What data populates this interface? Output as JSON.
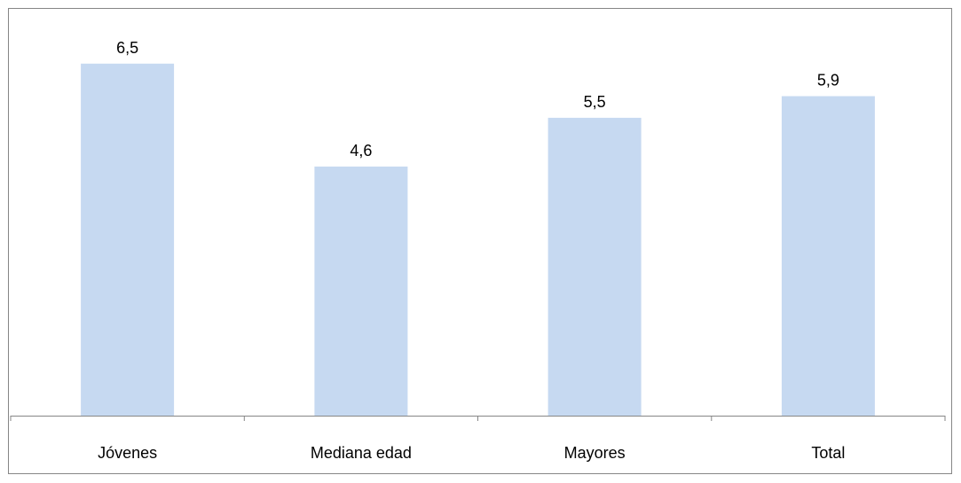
{
  "chart_data": {
    "type": "bar",
    "categories": [
      "Jóvenes",
      "Mediana edad",
      "Mayores",
      "Total"
    ],
    "values": [
      6.5,
      4.6,
      5.5,
      5.9
    ],
    "value_labels": [
      "6,5",
      "4,6",
      "5,5",
      "5,9"
    ],
    "title": "",
    "xlabel": "",
    "ylabel": "",
    "ylim": [
      0,
      7
    ],
    "grid": false,
    "legend": "none",
    "bar_color": "#C6D9F1",
    "axis_color": "#868686"
  }
}
